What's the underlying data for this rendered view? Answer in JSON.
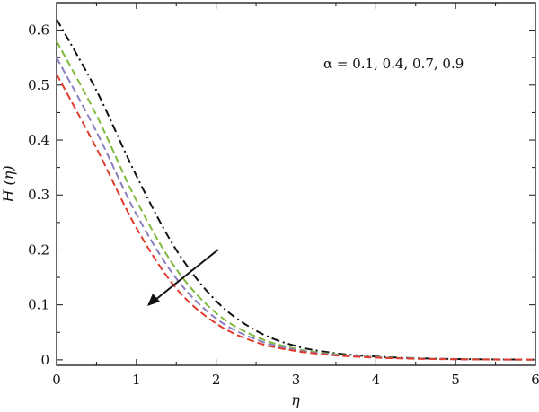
{
  "chart_data": {
    "type": "line",
    "xlabel": "η",
    "ylabel": "H (η)",
    "xlim": [
      0,
      6
    ],
    "ylim": [
      -0.01,
      0.65
    ],
    "xticks": [
      "0",
      "1",
      "2",
      "3",
      "4",
      "5",
      "6"
    ],
    "yticks": [
      "0",
      "0.1",
      "0.2",
      "0.3",
      "0.4",
      "0.5",
      "0.6"
    ],
    "grid": false,
    "annotation": "α = 0.1, 0.4, 0.7, 0.9",
    "series": [
      {
        "color": "#111111",
        "style": "dash-dot",
        "x": [
          0,
          0.5,
          1,
          1.5,
          2,
          2.5,
          3,
          3.5,
          4,
          4.5,
          5,
          5.5,
          6
        ],
        "values": [
          0.62,
          0.49,
          0.335,
          0.2,
          0.107,
          0.053,
          0.025,
          0.012,
          0.006,
          0.003,
          0.0015,
          0.0008,
          0.0005
        ]
      },
      {
        "color": "#7fba3c",
        "style": "dashed",
        "x": [
          0,
          0.5,
          1,
          1.5,
          2,
          2.5,
          3,
          3.5,
          4,
          4.5,
          5,
          5.5,
          6
        ],
        "values": [
          0.58,
          0.445,
          0.29,
          0.165,
          0.085,
          0.042,
          0.02,
          0.01,
          0.005,
          0.0025,
          0.0013,
          0.0007,
          0.0004
        ]
      },
      {
        "color": "#8a7fc0",
        "style": "dashed",
        "x": [
          0,
          0.5,
          1,
          1.5,
          2,
          2.5,
          3,
          3.5,
          4,
          4.5,
          5,
          5.5,
          6
        ],
        "values": [
          0.55,
          0.415,
          0.265,
          0.148,
          0.075,
          0.037,
          0.018,
          0.009,
          0.0045,
          0.0023,
          0.0012,
          0.0006,
          0.0003
        ]
      },
      {
        "color": "#e23b2e",
        "style": "dashed",
        "x": [
          0,
          0.5,
          1,
          1.5,
          2,
          2.5,
          3,
          3.5,
          4,
          4.5,
          5,
          5.5,
          6
        ],
        "values": [
          0.52,
          0.385,
          0.24,
          0.13,
          0.066,
          0.032,
          0.016,
          0.008,
          0.004,
          0.002,
          0.001,
          0.0005,
          0.0003
        ]
      }
    ]
  }
}
